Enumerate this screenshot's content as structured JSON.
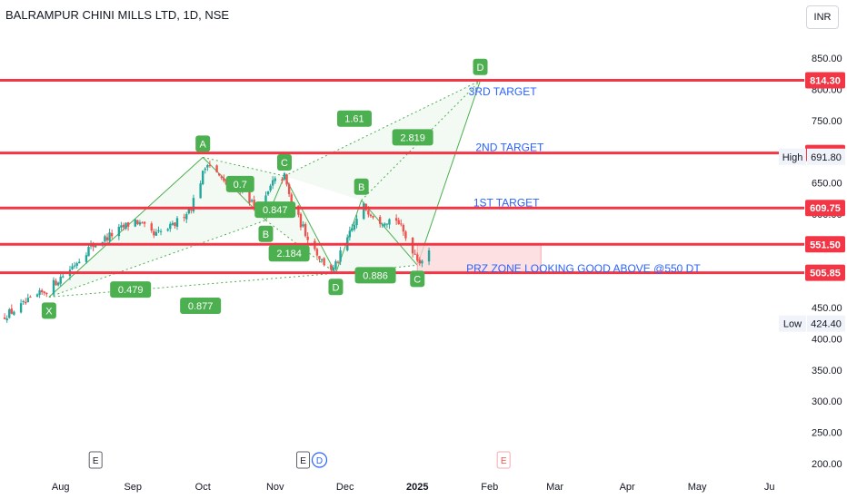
{
  "header": {
    "title": "BALRAMPUR CHINI MILLS LTD, 1D, NSE",
    "currency_button": "INR"
  },
  "colors": {
    "up": "#26a69a",
    "down": "#ef5350",
    "level_line": "#f23645",
    "pattern": "#4caf50",
    "pattern_fill": "#e8f5e9",
    "annotation_text": "#2962ff",
    "prz_fill": "#fcd5d7"
  },
  "chart_data": {
    "type": "candlestick",
    "ylim": [
      195,
      865
    ],
    "y_ticks": [
      200,
      250,
      300,
      350,
      400,
      450,
      500,
      550,
      600,
      650,
      700,
      750,
      800,
      850
    ],
    "y_tick_labels": [
      "200.00",
      "250.00",
      "300.00",
      "350.00",
      "400.00",
      "450.00",
      "500.00",
      "550.00",
      "600.00",
      "650.00",
      "700.00",
      "750.00",
      "800.00",
      "850.00"
    ],
    "x_start": "2024-07-06",
    "x_end": "2025-06-14",
    "x_ticks": [
      {
        "date": "2024-08-01",
        "label": "Aug"
      },
      {
        "date": "2024-09-01",
        "label": "Sep"
      },
      {
        "date": "2024-10-01",
        "label": "Oct"
      },
      {
        "date": "2024-11-01",
        "label": "Nov"
      },
      {
        "date": "2024-12-01",
        "label": "Dec"
      },
      {
        "date": "2025-01-01",
        "label": "2025"
      },
      {
        "date": "2025-02-01",
        "label": "Feb"
      },
      {
        "date": "2025-03-01",
        "label": "Mar"
      },
      {
        "date": "2025-04-01",
        "label": "Apr"
      },
      {
        "date": "2025-05-01",
        "label": "May"
      },
      {
        "date": "2025-06-01",
        "label": "Ju"
      }
    ],
    "price_path": [
      [
        "2024-07-06",
        433
      ],
      [
        "2024-07-15",
        452
      ],
      [
        "2024-07-26",
        478
      ],
      [
        "2024-08-05",
        512
      ],
      [
        "2024-08-13",
        545
      ],
      [
        "2024-08-22",
        565
      ],
      [
        "2024-09-02",
        590
      ],
      [
        "2024-09-10",
        565
      ],
      [
        "2024-09-18",
        580
      ],
      [
        "2024-09-26",
        612
      ],
      [
        "2024-10-03",
        685
      ],
      [
        "2024-10-10",
        650
      ],
      [
        "2024-10-18",
        640
      ],
      [
        "2024-10-25",
        602
      ],
      [
        "2024-10-31",
        650
      ],
      [
        "2024-11-05",
        660
      ],
      [
        "2024-11-08",
        615
      ],
      [
        "2024-11-14",
        570
      ],
      [
        "2024-11-21",
        525
      ],
      [
        "2024-11-26",
        510
      ],
      [
        "2024-12-02",
        560
      ],
      [
        "2024-12-09",
        612
      ],
      [
        "2024-12-16",
        590
      ],
      [
        "2024-12-23",
        592
      ],
      [
        "2024-12-28",
        555
      ],
      [
        "2025-01-02",
        525
      ],
      [
        "2025-01-07",
        538
      ]
    ],
    "horizontal_levels": [
      {
        "price": 814.3,
        "label": "814.30"
      },
      {
        "price": 697.85,
        "label": "697.85"
      },
      {
        "price": 609.75,
        "label": "609.75"
      },
      {
        "price": 551.5,
        "label": "551.50"
      },
      {
        "price": 505.85,
        "label": "505.85"
      }
    ],
    "stats": [
      {
        "name": "High",
        "value": "691.80",
        "price": 691.8
      },
      {
        "name": "Low",
        "value": "424.40",
        "price": 424.4
      }
    ],
    "harmonic_points": [
      {
        "label": "X",
        "date": "2024-07-27",
        "price": 467,
        "badge": "below"
      },
      {
        "label": "A",
        "date": "2024-10-01",
        "price": 691,
        "badge": "above"
      },
      {
        "label": "B",
        "date": "2024-10-28",
        "price": 590,
        "badge": "below"
      },
      {
        "label": "C",
        "date": "2024-11-05",
        "price": 661,
        "badge": "above"
      },
      {
        "label": "D",
        "date": "2024-11-27",
        "price": 505,
        "badge": "below"
      },
      {
        "label": "B",
        "date": "2024-12-08",
        "price": 622,
        "badge": "above"
      },
      {
        "label": "C",
        "date": "2025-01-01",
        "price": 518,
        "badge": "below"
      },
      {
        "label": "D",
        "date": "2025-01-28",
        "price": 814,
        "badge": "above"
      }
    ],
    "ratios": [
      {
        "label": "0.479",
        "date": "2024-08-31",
        "price": 479
      },
      {
        "label": "0.7",
        "date": "2024-10-17",
        "price": 648
      },
      {
        "label": "0.847",
        "date": "2024-11-01",
        "price": 607
      },
      {
        "label": "2.184",
        "date": "2024-11-07",
        "price": 537
      },
      {
        "label": "0.877",
        "date": "2024-09-30",
        "price": 453
      },
      {
        "label": "0.886",
        "date": "2024-12-14",
        "price": 502
      },
      {
        "label": "1.61",
        "date": "2024-12-05",
        "price": 753
      },
      {
        "label": "2.819",
        "date": "2024-12-30",
        "price": 723
      }
    ],
    "annotations": [
      {
        "text": "3RD TARGET",
        "date": "2025-01-23",
        "price": 796
      },
      {
        "text": "2ND TARGET",
        "date": "2025-01-26",
        "price": 707
      },
      {
        "text": "1ST TARGET",
        "date": "2025-01-25",
        "price": 618
      },
      {
        "text": "PRZ ZONE  LOOKING GOOD ABOVE  @550  DT",
        "date": "2025-01-22",
        "price": 513
      }
    ],
    "prz_zone": {
      "from": "2025-01-01",
      "to": "2025-02-23",
      "low": 505.85,
      "high": 551.5
    },
    "event_markers": [
      {
        "date": "2024-08-16",
        "label": "E",
        "kind": "earnings"
      },
      {
        "date": "2024-11-13",
        "label": "E",
        "kind": "earnings"
      },
      {
        "date": "2024-11-20",
        "label": "D",
        "kind": "dividend"
      },
      {
        "date": "2025-02-07",
        "label": "E",
        "kind": "earnings-upcoming"
      }
    ]
  }
}
